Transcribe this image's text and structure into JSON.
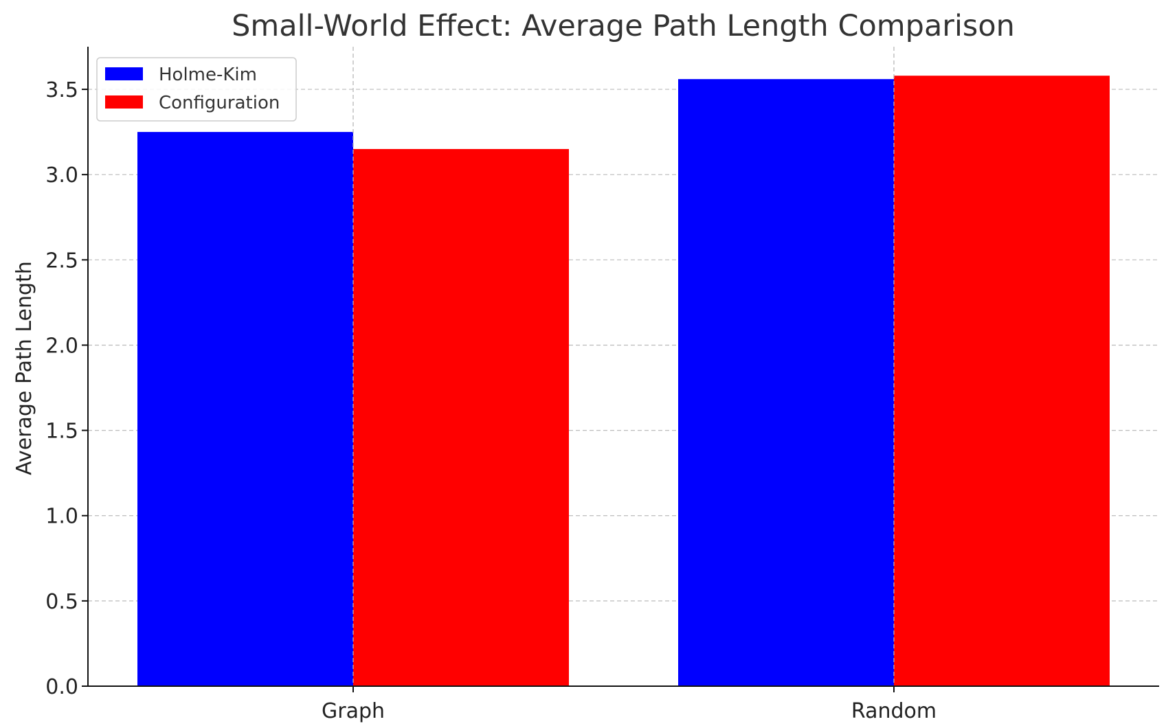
{
  "chart_data": {
    "type": "bar",
    "title": "Small-World Effect: Average Path Length Comparison",
    "xlabel": "",
    "ylabel": "Average Path Length",
    "categories": [
      "Graph",
      "Random"
    ],
    "series": [
      {
        "name": "Holme-Kim",
        "color": "#0000ff",
        "values": [
          3.25,
          3.56
        ]
      },
      {
        "name": "Configuration",
        "color": "#ff0000",
        "values": [
          3.15,
          3.58
        ]
      }
    ],
    "ylim": [
      0,
      3.75
    ],
    "yticks": [
      0.0,
      0.5,
      1.0,
      1.5,
      2.0,
      2.5,
      3.0,
      3.5
    ],
    "ytick_labels": [
      "0.0",
      "0.5",
      "1.0",
      "1.5",
      "2.0",
      "2.5",
      "3.0",
      "3.5"
    ],
    "grid": true,
    "legend_position": "top-left"
  }
}
